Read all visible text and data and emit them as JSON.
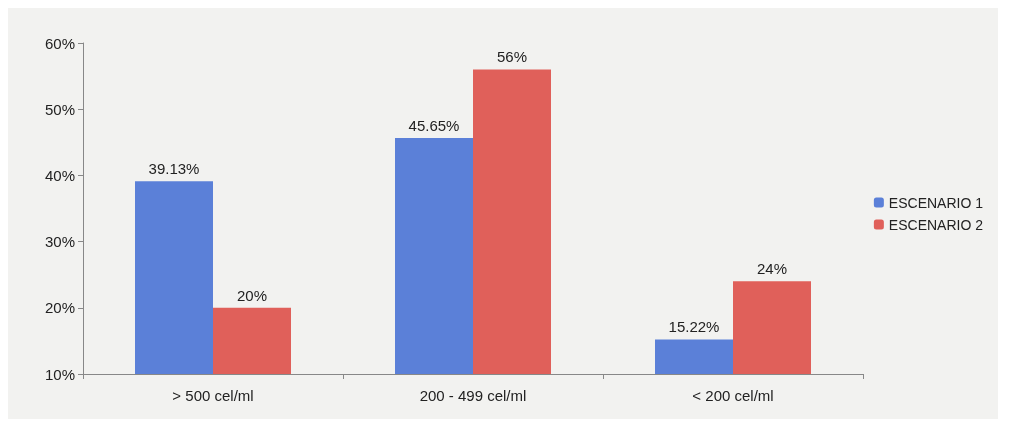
{
  "chart_data": {
    "type": "bar",
    "categories": [
      "> 500 cel/ml",
      "200 - 499 cel/ml",
      "< 200 cel/ml"
    ],
    "series": [
      {
        "name": "ESCENARIO 1",
        "color": "#5b80d8",
        "values": [
          39.13,
          45.65,
          15.22
        ],
        "value_labels": [
          "39.13%",
          "45.65%",
          "15.22%"
        ]
      },
      {
        "name": "ESCENARIO 2",
        "color": "#e0605a",
        "values": [
          20,
          56,
          24
        ],
        "value_labels": [
          "20%",
          "56%",
          "24%"
        ]
      }
    ],
    "ylim": [
      10,
      60
    ],
    "yticks": [
      {
        "value": 10,
        "label": "10%"
      },
      {
        "value": 20,
        "label": "20%"
      },
      {
        "value": 30,
        "label": "30%"
      },
      {
        "value": 40,
        "label": "40%"
      },
      {
        "value": 50,
        "label": "50%"
      },
      {
        "value": 60,
        "label": "60%"
      }
    ],
    "grid": false,
    "legend": "right"
  }
}
